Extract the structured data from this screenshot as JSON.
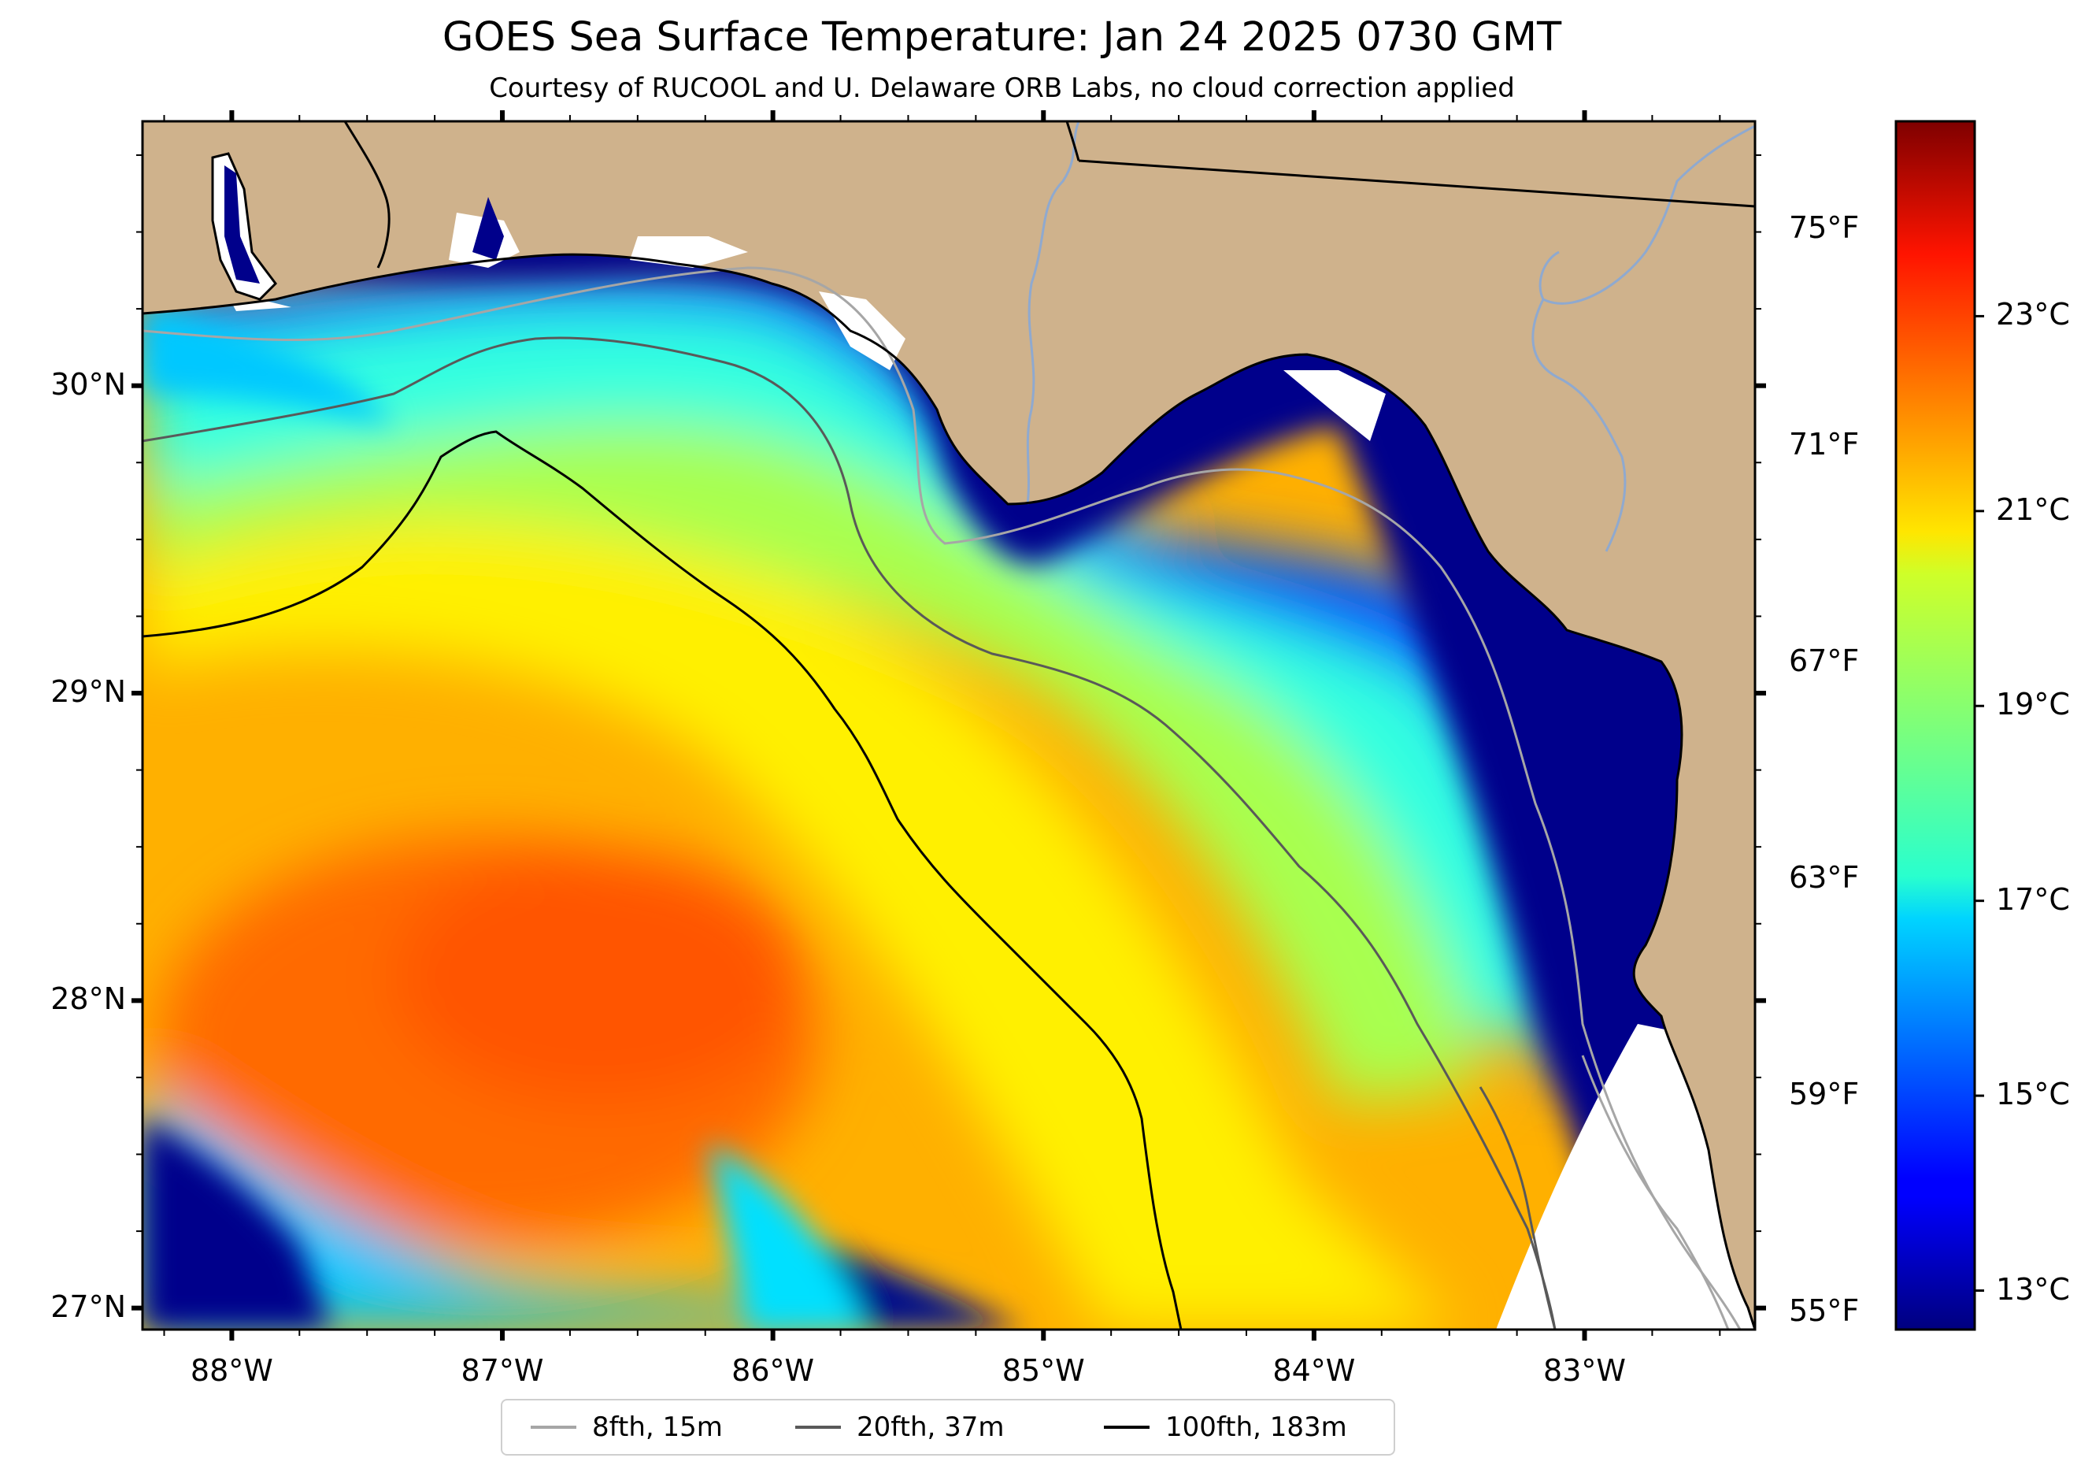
{
  "title": "GOES Sea Surface Temperature: Jan 24 2025 0730 GMT",
  "subtitle": "Courtesy of RUCOOL and U. Delaware ORB Labs, no cloud correction applied",
  "map": {
    "lon_labels": [
      "88°W",
      "87°W",
      "86°W",
      "85°W",
      "84°W",
      "83°W"
    ],
    "lon_values": [
      -88,
      -87,
      -86,
      -85,
      -84,
      -83
    ],
    "lat_labels": [
      "30°N",
      "29°N",
      "28°N",
      "27°N"
    ],
    "lat_values": [
      30,
      29,
      28,
      27
    ],
    "lon_range": [
      -88.33,
      -82.37
    ],
    "lat_range": [
      26.93,
      30.86
    ],
    "land_color": "#cfb28c",
    "no_data_color": "#ffffff"
  },
  "colorbar": {
    "celsius_labels": [
      "23°C",
      "21°C",
      "19°C",
      "17°C",
      "15°C",
      "13°C"
    ],
    "celsius_values": [
      23,
      21,
      19,
      17,
      15,
      13
    ],
    "fahrenheit_labels": [
      "75°F",
      "71°F",
      "67°F",
      "63°F",
      "59°F",
      "55°F"
    ],
    "fahrenheit_values": [
      75,
      71,
      67,
      63,
      59,
      55
    ],
    "range_c": [
      12.6,
      25
    ],
    "colormap": "jet"
  },
  "legend": {
    "items": [
      {
        "label": "8fth, 15m",
        "color": "#a6a6a6"
      },
      {
        "label": "20fth, 37m",
        "color": "#595959"
      },
      {
        "label": "100fth, 183m",
        "color": "#000000"
      }
    ]
  }
}
